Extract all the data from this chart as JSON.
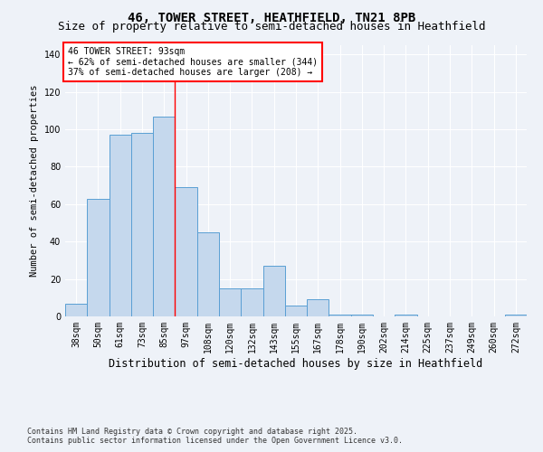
{
  "title1": "46, TOWER STREET, HEATHFIELD, TN21 8PB",
  "title2": "Size of property relative to semi-detached houses in Heathfield",
  "xlabel": "Distribution of semi-detached houses by size in Heathfield",
  "ylabel": "Number of semi-detached properties",
  "bin_labels": [
    "38sqm",
    "50sqm",
    "61sqm",
    "73sqm",
    "85sqm",
    "97sqm",
    "108sqm",
    "120sqm",
    "132sqm",
    "143sqm",
    "155sqm",
    "167sqm",
    "178sqm",
    "190sqm",
    "202sqm",
    "214sqm",
    "225sqm",
    "237sqm",
    "249sqm",
    "260sqm",
    "272sqm"
  ],
  "bar_heights": [
    7,
    63,
    97,
    98,
    107,
    69,
    45,
    15,
    15,
    27,
    6,
    9,
    1,
    1,
    0,
    1,
    0,
    0,
    0,
    0,
    1
  ],
  "bar_color": "#c5d8ed",
  "bar_edge_color": "#5a9fd4",
  "vline_x_index": 5,
  "vline_color": "red",
  "annotation_title": "46 TOWER STREET: 93sqm",
  "annotation_line1": "← 62% of semi-detached houses are smaller (344)",
  "annotation_line2": "37% of semi-detached houses are larger (208) →",
  "annotation_box_color": "white",
  "annotation_box_edge": "red",
  "ylim": [
    0,
    145
  ],
  "yticks": [
    0,
    20,
    40,
    60,
    80,
    100,
    120,
    140
  ],
  "footer1": "Contains HM Land Registry data © Crown copyright and database right 2025.",
  "footer2": "Contains public sector information licensed under the Open Government Licence v3.0.",
  "bg_color": "#eef2f8",
  "grid_color": "#ffffff",
  "title1_fontsize": 10,
  "title2_fontsize": 9,
  "xlabel_fontsize": 8.5,
  "ylabel_fontsize": 7.5,
  "tick_fontsize": 7,
  "annotation_fontsize": 7,
  "footer_fontsize": 6
}
